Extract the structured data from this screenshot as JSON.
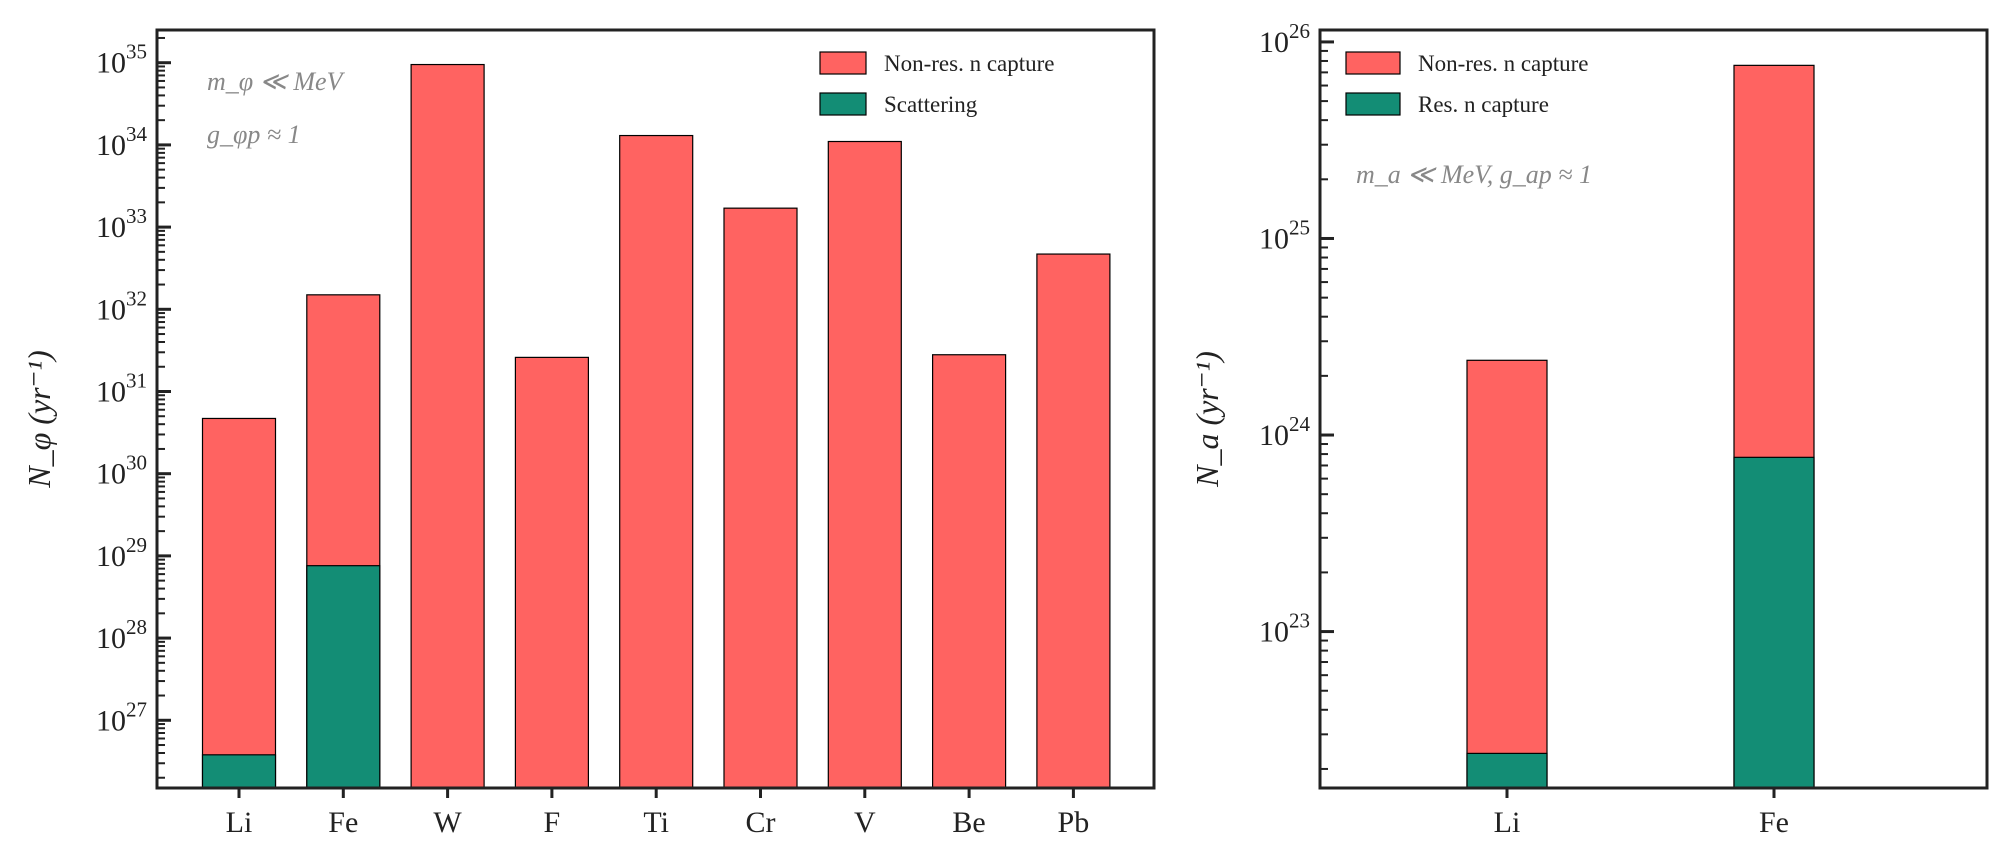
{
  "chart_data": [
    {
      "type": "bar",
      "stacked": true,
      "yscale": "log",
      "ylabel": "N_φ (yr⁻¹)",
      "ylabel_parts": {
        "main": "N",
        "sub": "φ",
        "unit": "(yr",
        "exp": "−1",
        "close": ")"
      },
      "ylim": [
        1.5e+26,
        2.5e+35
      ],
      "ytick_exponents": [
        27,
        28,
        29,
        30,
        31,
        32,
        33,
        34,
        35
      ],
      "categories": [
        "Li",
        "Fe",
        "W",
        "F",
        "Ti",
        "Cr",
        "V",
        "Be",
        "Pb"
      ],
      "series": [
        {
          "name": "Non-res. n capture",
          "color": "#ff6361",
          "values": [
            4.7e+30,
            1.5e+32,
            9.5e+34,
            2.6e+31,
            1.3e+34,
            1.7e+33,
            1.1e+34,
            2.8e+31,
            4.7e+32
          ]
        },
        {
          "name": "Scattering",
          "color": "#138d75",
          "values": [
            3.8e+26,
            7.6e+28,
            null,
            null,
            null,
            null,
            null,
            null,
            null
          ]
        }
      ],
      "legend_position": "top-right",
      "annotations": [
        "m_φ ≪ MeV",
        "g_φp ≈ 1"
      ]
    },
    {
      "type": "bar",
      "stacked": true,
      "yscale": "log",
      "ylabel": "N_a (yr⁻¹)",
      "ylabel_parts": {
        "main": "N",
        "sub": "a",
        "unit": "(yr",
        "exp": "−1",
        "close": ")"
      },
      "ylim": [
        1.6e+22,
        1.15e+26
      ],
      "ytick_exponents": [
        23,
        24,
        25,
        26
      ],
      "categories": [
        "Li",
        "Fe"
      ],
      "series": [
        {
          "name": "Non-res. n capture",
          "color": "#ff6361",
          "values": [
            2.4e+24,
            7.6e+25
          ]
        },
        {
          "name": "Res. n capture",
          "color": "#138d75",
          "values": [
            2.4e+22,
            7.7e+23
          ]
        }
      ],
      "legend_position": "top-left",
      "annotations": [
        "m_a ≪ MeV, g_ap ≈ 1"
      ]
    }
  ]
}
